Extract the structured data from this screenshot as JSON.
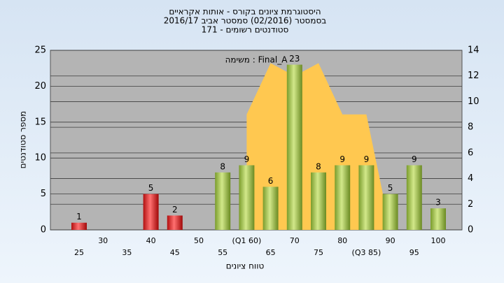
{
  "chart_data": {
    "type": "bar",
    "title": [
      "היסטוגרמת ציונים בקורס - אותות אקראיים",
      "בסמסטר  (02/2016)  סמסטר אביב 2016/17",
      "סטודנטים רשומים - 171"
    ],
    "y_label": "מספר סטודנטים",
    "x_label": "טווח ציונים",
    "annotation": "משימה : Final_A",
    "categories": [
      "25",
      "30",
      "35",
      "40",
      "45",
      "50",
      "55",
      "(Q1 60)",
      "65",
      "70",
      "75",
      "80",
      "(Q3 85)",
      "90",
      "95",
      "100"
    ],
    "values": [
      1,
      0,
      0,
      5,
      2,
      0,
      8,
      9,
      6,
      23,
      8,
      9,
      9,
      5,
      9,
      3
    ],
    "colors": [
      "red",
      "red",
      "red",
      "red",
      "red",
      "red",
      "green",
      "green",
      "green",
      "green",
      "green",
      "green",
      "green",
      "green",
      "green",
      "green"
    ],
    "area": {
      "axis": "y2",
      "color": "#ffc850",
      "values": [
        null,
        null,
        null,
        null,
        null,
        null,
        null,
        9,
        13,
        12,
        13,
        9,
        9,
        0,
        null,
        null
      ]
    },
    "ylim": [
      0,
      25
    ],
    "yticks": [
      0,
      5,
      10,
      15,
      20,
      25
    ],
    "y2lim": [
      0,
      14
    ],
    "y2ticks": [
      0,
      2,
      4,
      6,
      8,
      10,
      12,
      14
    ],
    "grid": true
  }
}
